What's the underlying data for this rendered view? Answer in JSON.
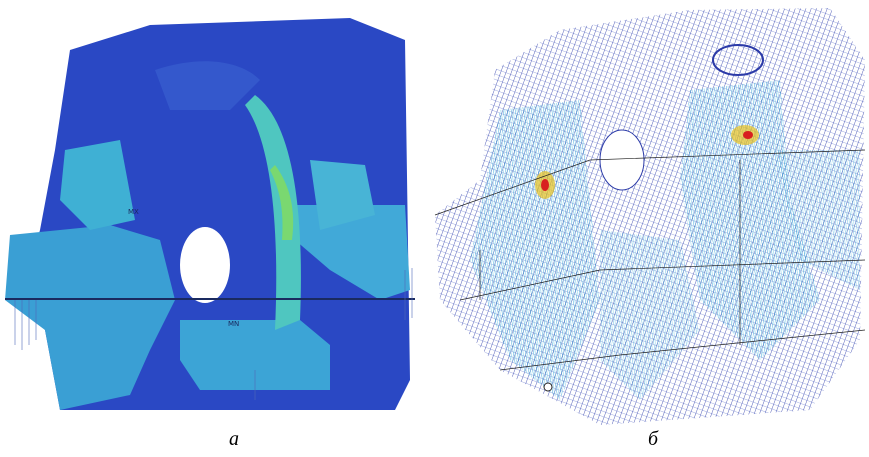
{
  "panels": [
    {
      "label": "а",
      "annotations": [
        "MX",
        "MN"
      ]
    },
    {
      "label": "б"
    }
  ]
}
